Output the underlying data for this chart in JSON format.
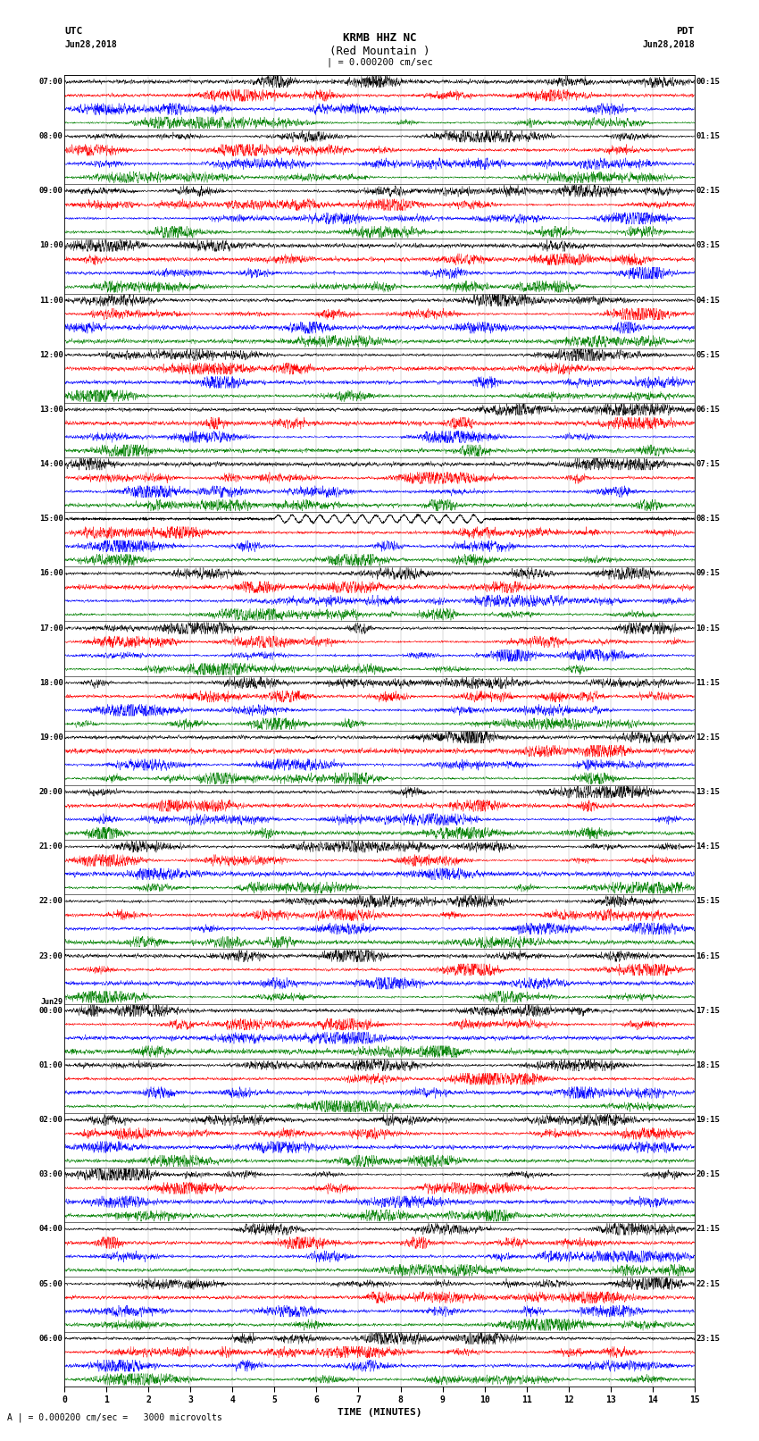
{
  "title_line1": "KRMB HHZ NC",
  "title_line2": "(Red Mountain )",
  "scale_label": "| = 0.000200 cm/sec",
  "scale_label2": "A | = 0.000200 cm/sec =   3000 microvolts",
  "header_left_line1": "UTC",
  "header_left_line2": "Jun28,2018",
  "header_right_line1": "PDT",
  "header_right_line2": "Jun28,2018",
  "xlabel": "TIME (MINUTES)",
  "xlim": [
    0,
    15
  ],
  "xticks": [
    0,
    1,
    2,
    3,
    4,
    5,
    6,
    7,
    8,
    9,
    10,
    11,
    12,
    13,
    14,
    15
  ],
  "background_color": "#ffffff",
  "trace_colors": [
    "#000000",
    "#ff0000",
    "#0000ff",
    "#008000"
  ],
  "utc_times": [
    "07:00",
    "08:00",
    "09:00",
    "10:00",
    "11:00",
    "12:00",
    "13:00",
    "14:00",
    "15:00",
    "16:00",
    "17:00",
    "18:00",
    "19:00",
    "20:00",
    "21:00",
    "22:00",
    "23:00",
    "Jun29",
    "01:00",
    "02:00",
    "03:00",
    "04:00",
    "05:00",
    "06:00"
  ],
  "utc_times_sub": [
    "",
    "",
    "",
    "",
    "",
    "",
    "",
    "",
    "",
    "",
    "",
    "",
    "",
    "",
    "",
    "",
    "",
    "00:00",
    "",
    "",
    "",
    "",
    "",
    ""
  ],
  "pdt_times": [
    "00:15",
    "01:15",
    "02:15",
    "03:15",
    "04:15",
    "05:15",
    "06:15",
    "07:15",
    "08:15",
    "09:15",
    "10:15",
    "11:15",
    "12:15",
    "13:15",
    "14:15",
    "15:15",
    "16:15",
    "17:15",
    "18:15",
    "19:15",
    "20:15",
    "21:15",
    "22:15",
    "23:15"
  ],
  "n_rows": 24,
  "traces_per_row": 4,
  "samples_per_trace": 4500,
  "fig_width": 8.5,
  "fig_height": 16.13,
  "dpi": 100,
  "trace_amplitude": 0.85,
  "linewidth": 0.28
}
